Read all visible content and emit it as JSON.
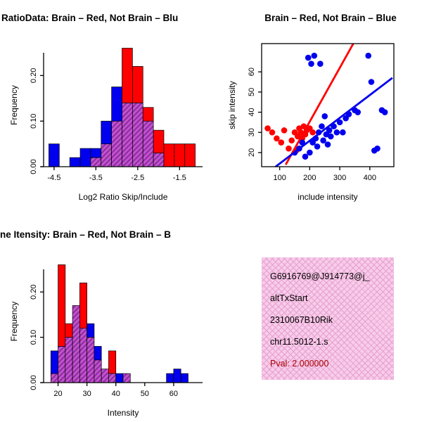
{
  "figure": {
    "background": "#FFFFFF"
  },
  "colors": {
    "red": "#FF0000",
    "blue": "#0000EE",
    "overlap_base": "#C353C9",
    "overlap_stripe": "#8A2BA6",
    "axis": "#000000"
  },
  "chart_data": [
    {
      "type": "histogram-overlay",
      "title": "RatioData: Brain – Red, Not Brain – Blu",
      "xlabel": "Log2 Ratio Skip/Include",
      "ylabel": "Frequency",
      "xlim": [
        -4.75,
        -0.95
      ],
      "ylim": [
        0,
        0.27
      ],
      "bin_width": 0.25,
      "xticks": {
        "values": [
          -4.5,
          -3.5,
          -2.5,
          -1.5
        ],
        "labels": [
          "-4.5",
          "-3.5",
          "-2.5",
          "-1.5"
        ]
      },
      "yticks": {
        "values": [
          0,
          0.1,
          0.2
        ],
        "labels": [
          "0.00",
          "0.10",
          "0.20"
        ]
      },
      "series_legend": {
        "red": "Brain",
        "blue": "Not Brain"
      },
      "bins": [
        {
          "x": -4.5,
          "red": 0,
          "blue": 0.05
        },
        {
          "x": -4.0,
          "red": 0,
          "blue": 0.02
        },
        {
          "x": -3.75,
          "red": 0,
          "blue": 0.04
        },
        {
          "x": -3.5,
          "red": 0.02,
          "blue": 0.04
        },
        {
          "x": -3.25,
          "red": 0.05,
          "blue": 0.1
        },
        {
          "x": -3.0,
          "red": 0.1,
          "blue": 0.175
        },
        {
          "x": -2.75,
          "red": 0.26,
          "blue": 0.14
        },
        {
          "x": -2.5,
          "red": 0.22,
          "blue": 0.14
        },
        {
          "x": -2.25,
          "red": 0.13,
          "blue": 0.1
        },
        {
          "x": -2.0,
          "red": 0.08,
          "blue": 0.03
        },
        {
          "x": -1.75,
          "red": 0.05,
          "blue": 0
        },
        {
          "x": -1.5,
          "red": 0.05,
          "blue": 0
        },
        {
          "x": -1.25,
          "red": 0.05,
          "blue": 0
        }
      ]
    },
    {
      "type": "scatter",
      "title": "Brain – Red, Not Brain – Blue",
      "xlabel": "include intensity",
      "ylabel": "skip intensity",
      "xlim": [
        40,
        480
      ],
      "ylim": [
        13,
        74
      ],
      "xticks": {
        "values": [
          100,
          200,
          300,
          400
        ],
        "labels": [
          "100",
          "200",
          "300",
          "400"
        ]
      },
      "yticks": {
        "values": [
          20,
          30,
          40,
          50,
          60
        ],
        "labels": [
          "20",
          "30",
          "40",
          "50",
          "60"
        ]
      },
      "series": [
        {
          "name": "brain",
          "color_key": "red",
          "points": [
            [
              60,
              32
            ],
            [
              75,
              30
            ],
            [
              90,
              27
            ],
            [
              105,
              25
            ],
            [
              115,
              31
            ],
            [
              130,
              22
            ],
            [
              140,
              26
            ],
            [
              150,
              30
            ],
            [
              155,
              21
            ],
            [
              160,
              28
            ],
            [
              165,
              32
            ],
            [
              170,
              30
            ],
            [
              175,
              27
            ],
            [
              180,
              33
            ],
            [
              185,
              29
            ],
            [
              190,
              31
            ],
            [
              200,
              32
            ],
            [
              210,
              30
            ]
          ]
        },
        {
          "name": "not-brain",
          "color_key": "blue",
          "points": [
            [
              150,
              20
            ],
            [
              165,
              22
            ],
            [
              175,
              25
            ],
            [
              185,
              18
            ],
            [
              195,
              67
            ],
            [
              200,
              20
            ],
            [
              205,
              64
            ],
            [
              210,
              25
            ],
            [
              215,
              68
            ],
            [
              220,
              27
            ],
            [
              225,
              23
            ],
            [
              230,
              30
            ],
            [
              235,
              64
            ],
            [
              240,
              33
            ],
            [
              245,
              26
            ],
            [
              250,
              38
            ],
            [
              255,
              29
            ],
            [
              260,
              24
            ],
            [
              265,
              31
            ],
            [
              270,
              28
            ],
            [
              280,
              33
            ],
            [
              290,
              30
            ],
            [
              300,
              35
            ],
            [
              310,
              30
            ],
            [
              320,
              37
            ],
            [
              330,
              39
            ],
            [
              350,
              41
            ],
            [
              360,
              40
            ],
            [
              395,
              68
            ],
            [
              405,
              55
            ],
            [
              415,
              21
            ],
            [
              425,
              22
            ],
            [
              440,
              41
            ],
            [
              450,
              40
            ]
          ]
        }
      ],
      "lines": [
        {
          "color_key": "red",
          "x1": 120,
          "y1": 14,
          "x2": 345,
          "y2": 74
        },
        {
          "color_key": "blue",
          "x1": 60,
          "y1": 10,
          "x2": 475,
          "y2": 57
        }
      ]
    },
    {
      "type": "histogram-overlay",
      "title": "ne Itensity: Brain – Red, Not Brain – B",
      "xlabel": "Intensity",
      "ylabel": "Frequency",
      "xlim": [
        15,
        70
      ],
      "ylim": [
        0,
        0.27
      ],
      "bin_width": 2.5,
      "xticks": {
        "values": [
          20,
          30,
          40,
          50,
          60
        ],
        "labels": [
          "20",
          "30",
          "40",
          "50",
          "60"
        ]
      },
      "yticks": {
        "values": [
          0,
          0.1,
          0.2
        ],
        "labels": [
          "0.00",
          "0.10",
          "0.20"
        ]
      },
      "series_legend": {
        "red": "Brain",
        "blue": "Not Brain"
      },
      "bins": [
        {
          "x": 18.75,
          "red": 0.02,
          "blue": 0.07
        },
        {
          "x": 21.25,
          "red": 0.26,
          "blue": 0.08
        },
        {
          "x": 23.75,
          "red": 0.13,
          "blue": 0.1
        },
        {
          "x": 26.25,
          "red": 0.17,
          "blue": 0.17
        },
        {
          "x": 28.75,
          "red": 0.22,
          "blue": 0.12
        },
        {
          "x": 31.25,
          "red": 0.1,
          "blue": 0.13
        },
        {
          "x": 33.75,
          "red": 0.05,
          "blue": 0.08
        },
        {
          "x": 36.25,
          "red": 0.03,
          "blue": 0.03
        },
        {
          "x": 38.75,
          "red": 0.07,
          "blue": 0.02
        },
        {
          "x": 41.25,
          "red": 0,
          "blue": 0.02
        },
        {
          "x": 43.75,
          "red": 0.02,
          "blue": 0.02
        },
        {
          "x": 58.75,
          "red": 0,
          "blue": 0.02
        },
        {
          "x": 61.25,
          "red": 0,
          "blue": 0.03
        },
        {
          "x": 63.75,
          "red": 0,
          "blue": 0.02
        }
      ]
    }
  ],
  "infobox": {
    "lines": [
      "G6916769@J914773@j_",
      "altTxStart",
      "2310067B10Rik",
      "chr11.5012-1.s",
      "Pval: 2.000000"
    ],
    "bg": "#F8CCE8",
    "hatch": "#E59FD2",
    "pval_color": "#AA0000"
  }
}
